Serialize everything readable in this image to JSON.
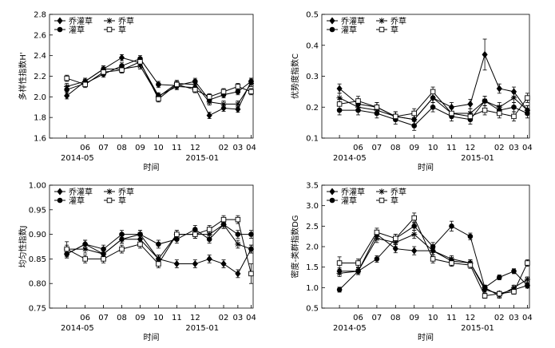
{
  "chart_data": [
    {
      "type": "line",
      "ylabel": "多样性指数H'",
      "xlabel": "时间",
      "ylim": [
        1.6,
        2.8
      ],
      "yticks": [
        "1.6",
        "1.8",
        "2.0",
        "2.2",
        "2.4",
        "2.6",
        "2.8"
      ],
      "categories": [
        "2014-05",
        "06",
        "07",
        "08",
        "09",
        "10",
        "11",
        "12",
        "2015-01",
        "02",
        "03",
        "04"
      ],
      "x_tick_labels": [
        "06",
        "07",
        "08",
        "09",
        "10",
        "11",
        "12",
        "02",
        "03",
        "04"
      ],
      "x_year_labels": [
        "2014-05",
        "2015-01"
      ],
      "legend": [
        "乔灌草",
        "乔草",
        "灌草",
        "草"
      ],
      "series": [
        {
          "name": "乔灌草",
          "values": [
            2.01,
            2.15,
            2.27,
            2.38,
            2.33,
            2.01,
            2.1,
            2.09,
            1.82,
            1.89,
            1.88,
            2.15
          ],
          "errors": [
            0.03,
            0.03,
            0.03,
            0.03,
            0.03,
            0.03,
            0.03,
            0.03,
            0.03,
            0.03,
            0.03,
            0.03
          ]
        },
        {
          "name": "乔草",
          "values": [
            2.1,
            2.15,
            2.27,
            2.27,
            2.3,
            2.0,
            2.13,
            2.12,
            1.95,
            1.93,
            1.93,
            2.13
          ],
          "errors": [
            0.03,
            0.03,
            0.03,
            0.03,
            0.03,
            0.03,
            0.03,
            0.03,
            0.03,
            0.03,
            0.03,
            0.03
          ]
        },
        {
          "name": "灌草",
          "values": [
            2.07,
            2.13,
            2.22,
            2.3,
            2.37,
            2.12,
            2.11,
            2.15,
            1.97,
            2.02,
            2.05,
            2.15
          ],
          "errors": [
            0.03,
            0.03,
            0.03,
            0.03,
            0.03,
            0.03,
            0.03,
            0.03,
            0.03,
            0.03,
            0.03,
            0.03
          ]
        },
        {
          "name": "草",
          "values": [
            2.18,
            2.12,
            2.24,
            2.26,
            2.34,
            1.98,
            2.12,
            2.07,
            2.0,
            2.05,
            2.1,
            2.05
          ],
          "errors": [
            0.03,
            0.03,
            0.03,
            0.03,
            0.03,
            0.03,
            0.03,
            0.03,
            0.03,
            0.03,
            0.03,
            0.03
          ]
        }
      ]
    },
    {
      "type": "line",
      "ylabel": "优势度指数C",
      "xlabel": "时间",
      "ylim": [
        0.1,
        0.5
      ],
      "yticks": [
        "0.1",
        "0.2",
        "0.3",
        "0.4",
        "0.5"
      ],
      "categories": [
        "2014-05",
        "06",
        "07",
        "08",
        "09",
        "10",
        "11",
        "12",
        "2015-01",
        "02",
        "03",
        "04"
      ],
      "x_tick_labels": [
        "06",
        "07",
        "08",
        "09",
        "10",
        "11",
        "12",
        "02",
        "03",
        "04"
      ],
      "x_year_labels": [
        "2014-05",
        "2015-01"
      ],
      "legend": [
        "乔灌草",
        "乔草",
        "灌草",
        "草"
      ],
      "series": [
        {
          "name": "乔灌草",
          "values": [
            0.26,
            0.21,
            0.2,
            0.17,
            0.16,
            0.23,
            0.2,
            0.21,
            0.37,
            0.26,
            0.25,
            0.19
          ],
          "errors": [
            0.015,
            0.015,
            0.015,
            0.015,
            0.015,
            0.015,
            0.015,
            0.015,
            0.05,
            0.015,
            0.015,
            0.015
          ]
        },
        {
          "name": "乔草",
          "values": [
            0.23,
            0.2,
            0.19,
            0.17,
            0.16,
            0.23,
            0.18,
            0.18,
            0.22,
            0.2,
            0.23,
            0.19
          ],
          "errors": [
            0.015,
            0.015,
            0.015,
            0.015,
            0.015,
            0.015,
            0.015,
            0.015,
            0.015,
            0.015,
            0.015,
            0.015
          ]
        },
        {
          "name": "灌草",
          "values": [
            0.19,
            0.19,
            0.18,
            0.16,
            0.14,
            0.2,
            0.17,
            0.16,
            0.22,
            0.19,
            0.2,
            0.18
          ],
          "errors": [
            0.015,
            0.015,
            0.015,
            0.015,
            0.015,
            0.015,
            0.015,
            0.015,
            0.015,
            0.015,
            0.015,
            0.015
          ]
        },
        {
          "name": "草",
          "values": [
            0.21,
            0.22,
            0.2,
            0.17,
            0.18,
            0.25,
            0.18,
            0.17,
            0.19,
            0.18,
            0.17,
            0.23
          ],
          "errors": [
            0.015,
            0.015,
            0.015,
            0.015,
            0.015,
            0.015,
            0.015,
            0.015,
            0.015,
            0.015,
            0.015,
            0.015
          ]
        }
      ]
    },
    {
      "type": "line",
      "ylabel": "均匀性指数J",
      "xlabel": "时间",
      "ylim": [
        0.75,
        1.0
      ],
      "yticks": [
        "0.75",
        "0.80",
        "0.85",
        "0.90",
        "0.95",
        "1.00"
      ],
      "categories": [
        "2014-05",
        "06",
        "07",
        "08",
        "09",
        "10",
        "11",
        "12",
        "2015-01",
        "02",
        "03",
        "04"
      ],
      "x_tick_labels": [
        "06",
        "07",
        "08",
        "09",
        "10",
        "11",
        "12",
        "02",
        "03",
        "04"
      ],
      "x_year_labels": [
        "2014-05",
        "2015-01"
      ],
      "legend": [
        "乔灌草",
        "乔草",
        "灌草",
        "草"
      ],
      "series": [
        {
          "name": "乔灌草",
          "values": [
            0.86,
            0.88,
            0.86,
            0.89,
            0.89,
            0.85,
            0.84,
            0.84,
            0.85,
            0.84,
            0.82,
            0.87
          ],
          "errors": [
            0.008,
            0.008,
            0.008,
            0.008,
            0.008,
            0.008,
            0.008,
            0.008,
            0.008,
            0.008,
            0.008,
            0.008
          ]
        },
        {
          "name": "乔草",
          "values": [
            0.87,
            0.87,
            0.86,
            0.89,
            0.9,
            0.85,
            0.9,
            0.9,
            0.9,
            0.92,
            0.88,
            0.87
          ],
          "errors": [
            0.008,
            0.008,
            0.008,
            0.008,
            0.008,
            0.008,
            0.008,
            0.008,
            0.008,
            0.008,
            0.008,
            0.008
          ]
        },
        {
          "name": "灌草",
          "values": [
            0.86,
            0.88,
            0.87,
            0.9,
            0.9,
            0.88,
            0.89,
            0.91,
            0.89,
            0.92,
            0.9,
            0.9
          ],
          "errors": [
            0.008,
            0.008,
            0.008,
            0.008,
            0.008,
            0.008,
            0.008,
            0.008,
            0.008,
            0.008,
            0.008,
            0.008
          ]
        },
        {
          "name": "草",
          "values": [
            0.87,
            0.85,
            0.85,
            0.87,
            0.88,
            0.84,
            0.9,
            0.9,
            0.91,
            0.93,
            0.93,
            0.82
          ],
          "errors": [
            0.015,
            0.008,
            0.008,
            0.008,
            0.008,
            0.008,
            0.008,
            0.008,
            0.008,
            0.008,
            0.008,
            0.02
          ]
        }
      ]
    },
    {
      "type": "line",
      "ylabel": "密度-类群指数DG",
      "xlabel": "时间",
      "ylim": [
        0.5,
        3.5
      ],
      "yticks": [
        "0.5",
        "1.0",
        "1.5",
        "2.0",
        "2.5",
        "3.0",
        "3.5"
      ],
      "categories": [
        "2014-05",
        "06",
        "07",
        "08",
        "09",
        "10",
        "11",
        "12",
        "2015-01",
        "02",
        "03",
        "04"
      ],
      "x_tick_labels": [
        "06",
        "07",
        "08",
        "09",
        "10",
        "11",
        "12",
        "02",
        "03",
        "04"
      ],
      "x_year_labels": [
        "2014-05",
        "2015-01"
      ],
      "legend": [
        "乔灌草",
        "乔草",
        "灌草",
        "草"
      ],
      "series": [
        {
          "name": "乔灌草",
          "values": [
            1.4,
            1.4,
            2.3,
            1.95,
            1.9,
            1.9,
            1.65,
            1.6,
            0.95,
            0.85,
            0.95,
            1.05
          ],
          "errors": [
            0.08,
            0.08,
            0.1,
            0.1,
            0.1,
            0.1,
            0.08,
            0.08,
            0.06,
            0.06,
            0.06,
            0.06
          ]
        },
        {
          "name": "乔草",
          "values": [
            1.35,
            1.4,
            2.2,
            2.1,
            2.3,
            1.9,
            1.7,
            1.6,
            1.0,
            0.8,
            1.0,
            1.2
          ],
          "errors": [
            0.08,
            0.08,
            0.1,
            0.1,
            0.1,
            0.1,
            0.08,
            0.08,
            0.06,
            0.06,
            0.06,
            0.06
          ]
        },
        {
          "name": "灌草",
          "values": [
            0.95,
            1.4,
            1.7,
            2.2,
            2.5,
            2.0,
            2.5,
            2.25,
            1.0,
            1.25,
            1.4,
            1.05
          ],
          "errors": [
            0.06,
            0.08,
            0.08,
            0.1,
            0.1,
            0.1,
            0.12,
            0.08,
            0.06,
            0.06,
            0.06,
            0.06
          ]
        },
        {
          "name": "草",
          "values": [
            1.6,
            1.6,
            2.35,
            2.2,
            2.7,
            1.7,
            1.6,
            1.55,
            0.8,
            0.85,
            0.9,
            1.6
          ],
          "errors": [
            0.15,
            0.1,
            0.1,
            0.1,
            0.12,
            0.1,
            0.08,
            0.08,
            0.06,
            0.06,
            0.06,
            0.08
          ]
        }
      ]
    }
  ]
}
